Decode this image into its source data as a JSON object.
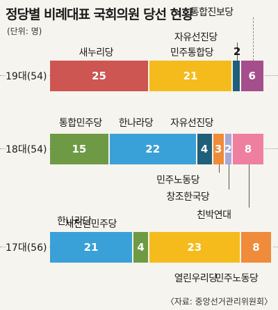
{
  "header": {
    "title": "정당별 비례대표 국회의원 당선 현황",
    "unit": "(단위: 명)",
    "source": "〈자료: 중앙선거관리위원회〉"
  },
  "colors": {
    "saenuri": "#cd5652",
    "minju": "#f5bb1c",
    "tonghap_jinbo": "#1f5f7a",
    "purple": "#a54e8c",
    "green": "#6f9a45",
    "blue": "#3aa0d8",
    "orange": "#ef8b3a",
    "lavender": "#aba6d6",
    "pink": "#ef7fa0"
  },
  "chart_data": {
    "type": "bar",
    "orientation": "horizontal",
    "stacked": true,
    "rows": [
      {
        "label": "19대(54)",
        "segments": [
          {
            "name": "새누리당",
            "value": 25,
            "color": "#cd5652"
          },
          {
            "name": "민주통합당",
            "value": 21,
            "color": "#f5bb1c"
          },
          {
            "name": "자유선진당",
            "value": 2,
            "color": "#1f5f7a"
          },
          {
            "name": "통합진보당",
            "value": 6,
            "color": "#a54e8c"
          }
        ]
      },
      {
        "label": "18대(54)",
        "segments": [
          {
            "name": "통합민주당",
            "value": 15,
            "color": "#6f9a45"
          },
          {
            "name": "한나라당",
            "value": 22,
            "color": "#3aa0d8"
          },
          {
            "name": "자유선진당",
            "value": 4,
            "color": "#1f5f7a"
          },
          {
            "name": "민주노동당",
            "value": 3,
            "color": "#ef8b3a"
          },
          {
            "name": "창조한국당",
            "value": 2,
            "color": "#aba6d6"
          },
          {
            "name": "친박연대",
            "value": 8,
            "color": "#ef7fa0"
          }
        ]
      },
      {
        "label": "17대(56)",
        "segments": [
          {
            "name": "한나라당",
            "value": 21,
            "color": "#3aa0d8"
          },
          {
            "name": "새천년민주당",
            "value": 4,
            "color": "#6f9a45"
          },
          {
            "name": "열린우리당",
            "value": 23,
            "color": "#f5bb1c"
          },
          {
            "name": "민주노동당",
            "value": 8,
            "color": "#ef8b3a"
          }
        ]
      }
    ]
  }
}
